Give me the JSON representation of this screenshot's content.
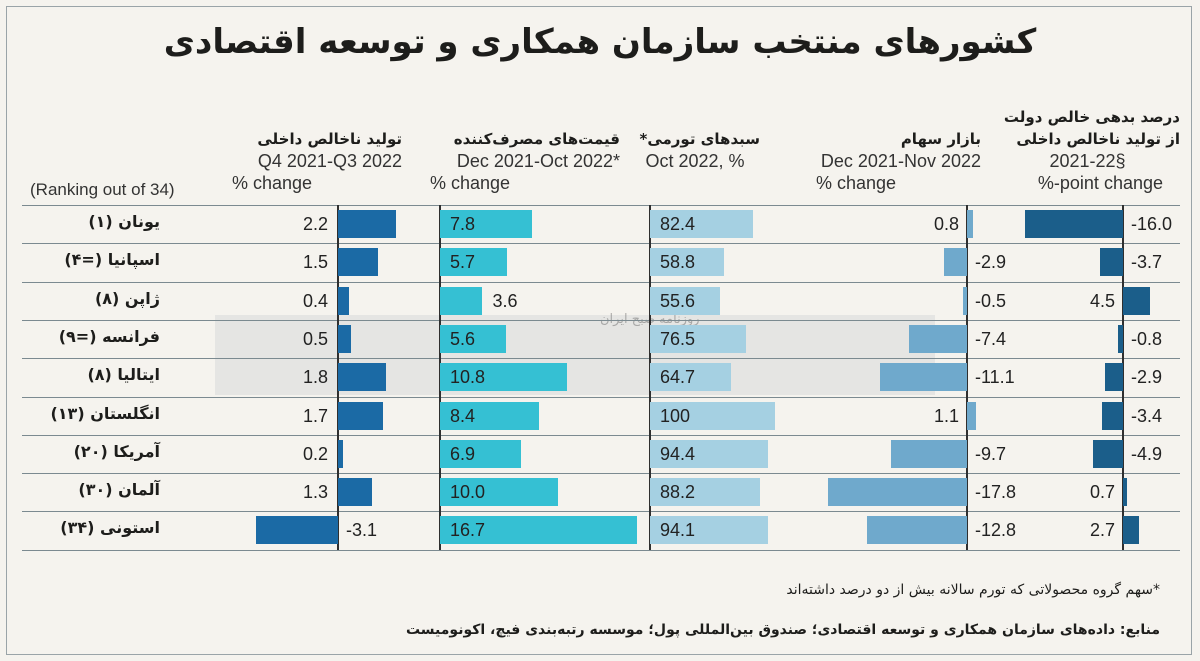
{
  "title": "کشورهای منتخب سازمان همکاری و توسعه اقتصادی",
  "ranking_header": "(Ranking out of 34)",
  "watermark": "روزنامه صبح ایران",
  "colors": {
    "gdp": "#1b6aa5",
    "prices": "#35c0d3",
    "inflation": "#a5d0e2",
    "stock": "#6fa9cc",
    "budget": "#1b5e8a"
  },
  "columns": [
    {
      "fa": "تولید ناخالص داخلی",
      "en1": "Q4 2021-Q3 2022",
      "en2": "% change"
    },
    {
      "fa": "قیمت‌های مصرف‌کننده",
      "en1": "Dec 2021-Oct 2022*",
      "en2": "% change"
    },
    {
      "fa": "سبدهای تورمی*",
      "en1": "",
      "en2": "Oct 2022, %"
    },
    {
      "fa": "بازار سهام",
      "en1": "Dec 2021-Nov 2022",
      "en2": "% change"
    },
    {
      "fa": "درصد بدهی خالص دولت از تولید ناخالص داخلی",
      "en1": "2021-22§",
      "en2": "%-point change"
    }
  ],
  "chart_data": {
    "type": "bar",
    "categories": [
      "یونان (۱)",
      "اسپانیا (=۴)",
      "ژاپن (۸)",
      "فرانسه (=۹)",
      "ایتالیا (۸)",
      "انگلستان (۱۳)",
      "آمریکا (۲۰)",
      "آلمان (۳۰)",
      "استونی (۳۴)"
    ],
    "series": [
      {
        "name": "تولید ناخالص داخلی",
        "values": [
          2.2,
          1.5,
          0.4,
          0.5,
          1.8,
          1.7,
          0.2,
          1.3,
          -3.1
        ]
      },
      {
        "name": "قیمت‌های مصرف‌کننده",
        "values": [
          7.8,
          5.7,
          3.6,
          5.6,
          10.8,
          8.4,
          6.9,
          10.0,
          16.7
        ]
      },
      {
        "name": "سبدهای تورمی*",
        "values": [
          82.4,
          58.8,
          55.6,
          76.5,
          64.7,
          100,
          94.4,
          88.2,
          94.1
        ]
      },
      {
        "name": "بازار سهام",
        "values": [
          0.8,
          -2.9,
          -0.5,
          -7.4,
          -11.1,
          1.1,
          -9.7,
          -17.8,
          -12.8
        ]
      },
      {
        "name": "درصد بدهی خالص دولت از تولید ناخالص داخلی",
        "values": [
          -16.0,
          -3.7,
          4.5,
          -0.8,
          -2.9,
          -3.4,
          -4.9,
          0.7,
          2.7
        ]
      }
    ],
    "labels": [
      [
        "2.2",
        "1.5",
        "0.4",
        "0.5",
        "1.8",
        "1.7",
        "0.2",
        "1.3",
        "-3.1"
      ],
      [
        "7.8",
        "5.7",
        "3.6",
        "5.6",
        "10.8",
        "8.4",
        "6.9",
        "10.0",
        "16.7"
      ],
      [
        "82.4",
        "58.8",
        "55.6",
        "76.5",
        "64.7",
        "100",
        "94.4",
        "88.2",
        "94.1"
      ],
      [
        "0.8",
        "-2.9",
        "-0.5",
        "-7.4",
        "-11.1",
        "1.1",
        "-9.7",
        "-17.8",
        "-12.8"
      ],
      [
        "-16.0",
        "-3.7",
        "4.5",
        "-0.8",
        "-2.9",
        "-3.4",
        "-4.9",
        "0.7",
        "2.7"
      ]
    ]
  },
  "footnote": "*سهم گروه محصولاتی که تورم سالانه بیش از دو درصد داشته‌اند",
  "source": "منابع: داده‌های سازمان همکاری و توسعه اقتصادی؛ صندوق بین‌المللی پول؛ موسسه رتبه‌بندی فیچ، اکونومیست"
}
